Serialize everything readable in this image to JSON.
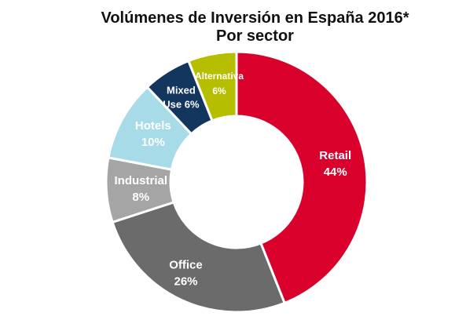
{
  "chart_data": {
    "type": "pie",
    "donut": true,
    "title": "Volúmenes de Inversión en España 2016*",
    "subtitle": "Por sector",
    "slices": [
      {
        "name": "Retail",
        "value": 44,
        "label": "44%",
        "color": "#d9002b"
      },
      {
        "name": "Office",
        "value": 26,
        "label": "26%",
        "color": "#6b6b6b"
      },
      {
        "name": "Industrial",
        "value": 8,
        "label": "8%",
        "color": "#a5a5a5"
      },
      {
        "name": "Hotels",
        "value": 10,
        "label": "10%",
        "color": "#a8dbe8"
      },
      {
        "name": "Mixed Use",
        "value": 6,
        "label": "6%",
        "color": "#13365f",
        "name_lines": [
          "Mixed",
          "Use"
        ],
        "inline_pct": true
      },
      {
        "name": "Alternativa",
        "value": 6,
        "label": "6%",
        "color": "#b6be00"
      }
    ],
    "label_color": "#ffffff"
  }
}
